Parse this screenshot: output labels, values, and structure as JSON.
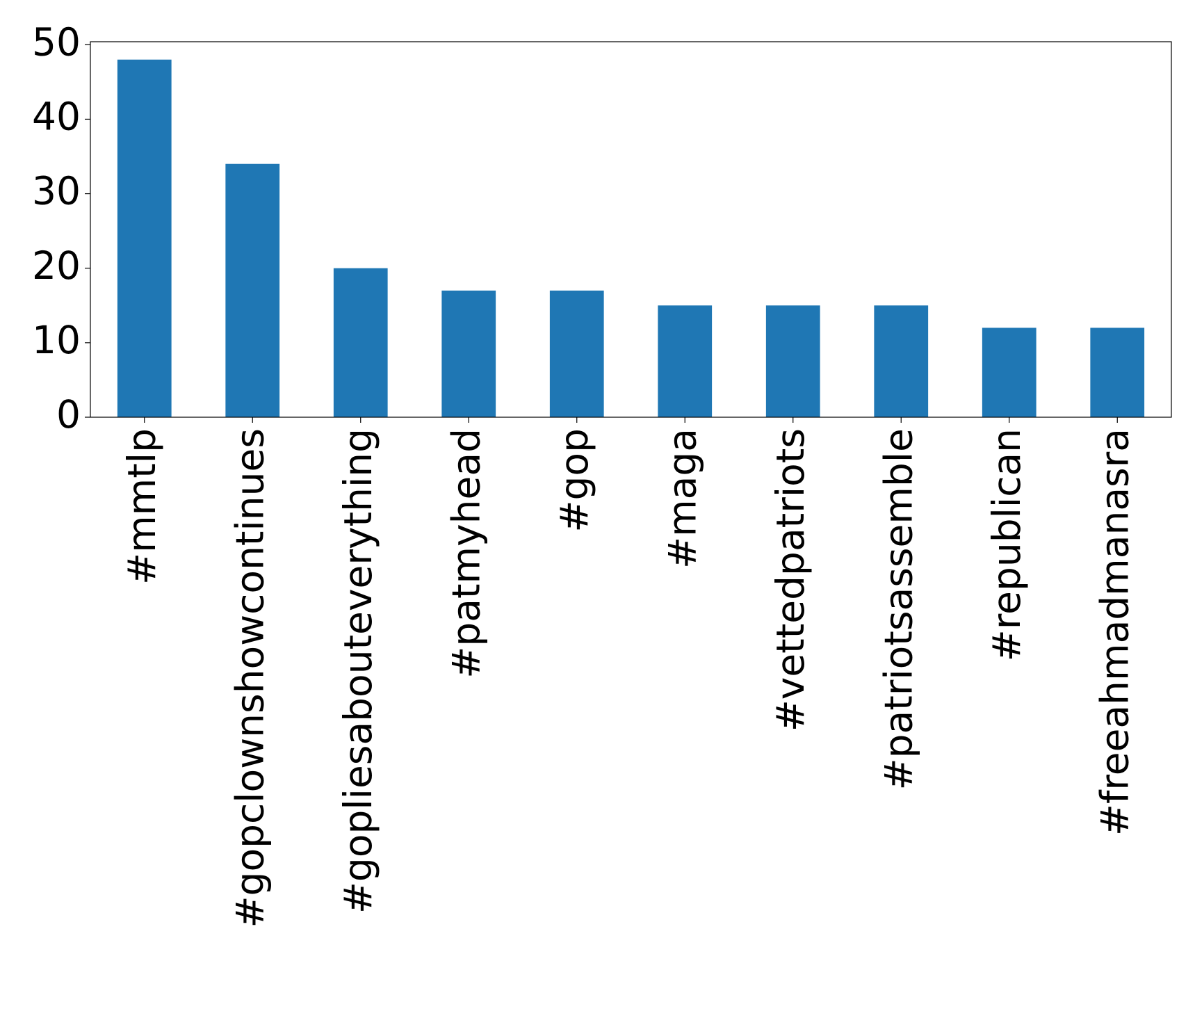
{
  "chart_data": {
    "type": "bar",
    "categories": [
      "#mmtlp",
      "#gopclownshowcontinues",
      "#gopliesabouteverything",
      "#patmyhead",
      "#gop",
      "#maga",
      "#vettedpatriots",
      "#patriotsassemble",
      "#republican",
      "#freeahmadmanasra"
    ],
    "values": [
      48,
      34,
      20,
      17,
      17,
      15,
      15,
      15,
      12,
      12
    ],
    "color": "#1f77b4",
    "ylim": [
      0,
      50.4
    ],
    "yticks": [
      0,
      10,
      20,
      30,
      40,
      50
    ],
    "grid": false
  }
}
